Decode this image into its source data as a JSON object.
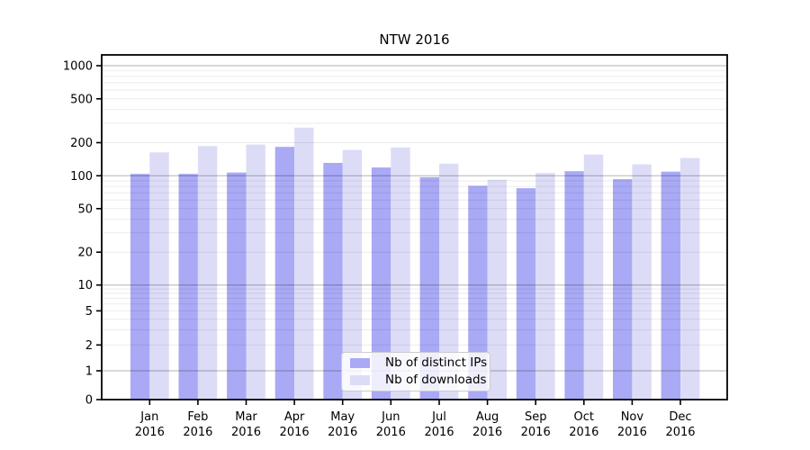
{
  "chart_data": {
    "type": "bar",
    "title": "NTW 2016",
    "xlabel": "",
    "ylabel": "",
    "yscale": "symlog",
    "grid": true,
    "legend_position": "inside lower-center",
    "ylim": [
      0,
      1250
    ],
    "yticks": [
      0,
      1,
      2,
      5,
      10,
      20,
      50,
      100,
      200,
      500,
      1000
    ],
    "major_gridline_values": [
      1,
      10,
      100,
      1000
    ],
    "categories": [
      "Jan 2016",
      "Feb 2016",
      "Mar 2016",
      "Apr 2016",
      "May 2016",
      "Jun 2016",
      "Jul 2016",
      "Aug 2016",
      "Sep 2016",
      "Oct 2016",
      "Nov 2016",
      "Dec 2016"
    ],
    "series": [
      {
        "name": "Nb of distinct IPs",
        "color": "#a9a9f5",
        "values": [
          104,
          104,
          107,
          183,
          131,
          119,
          97,
          81,
          77,
          110,
          93,
          109
        ]
      },
      {
        "name": "Nb of downloads",
        "color": "#dcdcf7",
        "values": [
          163,
          186,
          192,
          274,
          172,
          181,
          129,
          92,
          106,
          156,
          127,
          145
        ]
      }
    ]
  },
  "colors": {
    "axis": "#000000",
    "distinct_ips_bar": "#a9a9f5",
    "downloads_bar": "#dcdcf7"
  }
}
